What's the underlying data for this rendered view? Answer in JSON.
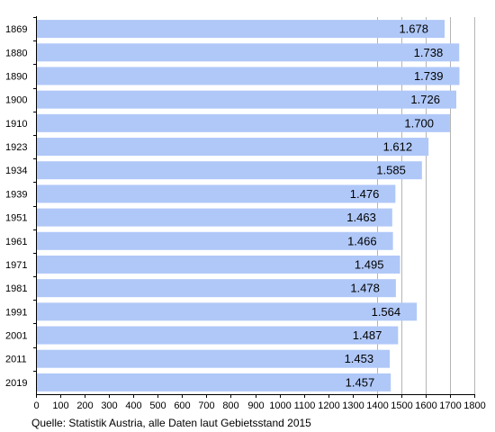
{
  "chart_data": {
    "type": "bar",
    "orientation": "horizontal",
    "categories": [
      "1869",
      "1880",
      "1890",
      "1900",
      "1910",
      "1923",
      "1934",
      "1939",
      "1951",
      "1961",
      "1971",
      "1981",
      "1991",
      "2001",
      "2011",
      "2019"
    ],
    "values": [
      1678,
      1738,
      1739,
      1726,
      1700,
      1612,
      1585,
      1476,
      1463,
      1466,
      1495,
      1478,
      1564,
      1487,
      1453,
      1457
    ],
    "value_labels": [
      "1.678",
      "1.738",
      "1.739",
      "1.726",
      "1.700",
      "1.612",
      "1.585",
      "1.476",
      "1.463",
      "1.466",
      "1.495",
      "1.478",
      "1.564",
      "1.487",
      "1.453",
      "1.457"
    ],
    "xlim": [
      0,
      1800
    ],
    "xticks": [
      0,
      100,
      200,
      300,
      400,
      500,
      600,
      700,
      800,
      900,
      1000,
      1100,
      1200,
      1300,
      1400,
      1500,
      1600,
      1700,
      1800
    ],
    "grid": "vertical lines at 1400, 1500, 1600, 1700, 1800",
    "bar_color": "#b0c8f8",
    "title": "",
    "xlabel": "",
    "ylabel": ""
  },
  "source": "Quelle: Statistik Austria, alle Daten laut Gebietsstand 2015"
}
